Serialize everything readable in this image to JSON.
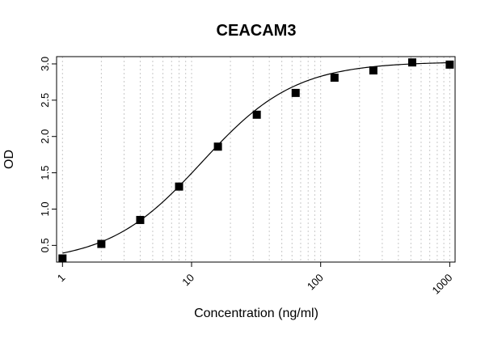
{
  "chart_data": {
    "type": "scatter",
    "title": "CEACAM3",
    "xlabel": "Concentration (ng/ml)",
    "ylabel": "OD",
    "x_scale": "log",
    "xlim": [
      0.9,
      1100
    ],
    "ylim": [
      0.27,
      3.1
    ],
    "x_ticks": [
      1,
      10,
      100,
      1000
    ],
    "x_tick_labels": [
      "1",
      "10",
      "100",
      "1000"
    ],
    "y_ticks": [
      0.5,
      1.0,
      1.5,
      2.0,
      2.5,
      3.0
    ],
    "y_tick_labels": [
      "0.5",
      "1.0",
      "1.5",
      "2.0",
      "2.5",
      "3.0"
    ],
    "grid": "vertical dotted at log minor ticks",
    "series": [
      {
        "marker": "filled-square",
        "x": [
          1,
          2,
          4,
          8,
          16,
          32,
          64,
          128,
          256,
          512,
          1000
        ],
        "y": [
          0.32,
          0.52,
          0.85,
          1.31,
          1.86,
          2.3,
          2.6,
          2.81,
          2.91,
          3.02,
          2.99
        ]
      }
    ],
    "fit_curve": {
      "type": "4PL",
      "bottom": 0.26,
      "top": 3.03,
      "ec50": 12,
      "hill": 1.2
    },
    "colors": {
      "points": "#000000",
      "curve": "#000000",
      "grid": "#c8c8c8",
      "frame": "#000000"
    }
  }
}
